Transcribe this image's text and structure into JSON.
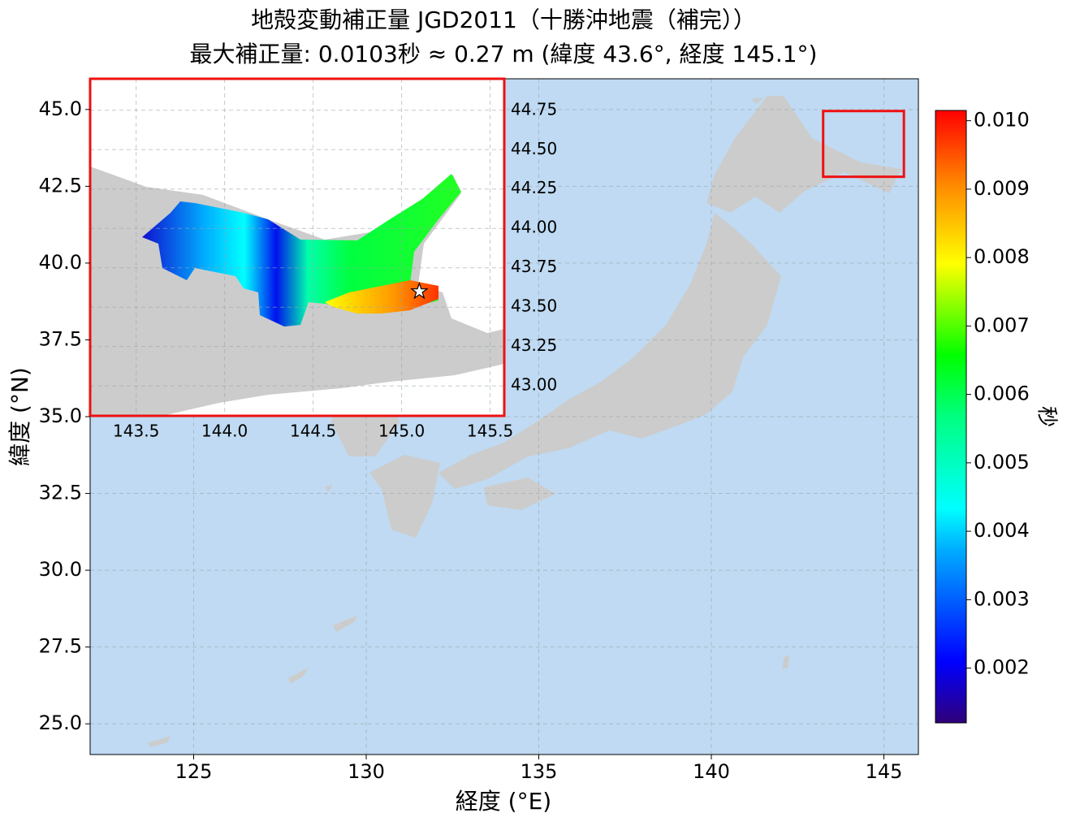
{
  "chart_data": {
    "type": "map",
    "title": "地殻変動補正量 JGD2011（十勝沖地震（補完））",
    "subtitle": "最大補正量: 0.0103秒 ≈ 0.27 m  (緯度 43.6°, 経度 145.1°)",
    "xlabel": "経度 (°E)",
    "ylabel": "緯度 (°N)",
    "xlim": [
      122,
      146
    ],
    "ylim": [
      24,
      46
    ],
    "xticks": [
      125,
      130,
      135,
      140,
      145
    ],
    "yticks": [
      {
        "value": 25,
        "label": "25.0"
      },
      27.5,
      {
        "value": 30,
        "label": "30.0"
      },
      32.5,
      {
        "value": 35,
        "label": "35.0"
      },
      37.5,
      {
        "value": 40,
        "label": "40.0"
      },
      42.5,
      {
        "value": 45,
        "label": "45.0"
      }
    ],
    "grid": true,
    "land_color": "#cccccc",
    "ocean_color": "#bfdaf2",
    "box_color": "#ee1111",
    "inset": {
      "xlim": [
        143.24,
        145.58
      ],
      "ylim": [
        42.81,
        44.95
      ],
      "xticks": [
        143.5,
        {
          "value": 144,
          "label": "144.0"
        },
        144.5,
        {
          "value": 145,
          "label": "145.0"
        },
        145.5
      ],
      "yticks": [
        {
          "value": 43,
          "label": "43.00"
        },
        43.25,
        {
          "value": 43.5,
          "label": "43.50"
        },
        43.75,
        {
          "value": 44,
          "label": "44.00"
        },
        44.25,
        {
          "value": 44.5,
          "label": "44.50"
        },
        44.75
      ],
      "marker": {
        "x": 145.1,
        "y": 43.6
      }
    },
    "colorbar": {
      "label": "秒",
      "lim": [
        0.0012,
        0.01015
      ],
      "ticks": [
        0.002,
        0.003,
        0.004,
        0.005,
        0.006,
        0.007,
        0.008,
        0.009,
        {
          "value": 0.01,
          "label": "0.010"
        }
      ]
    }
  }
}
